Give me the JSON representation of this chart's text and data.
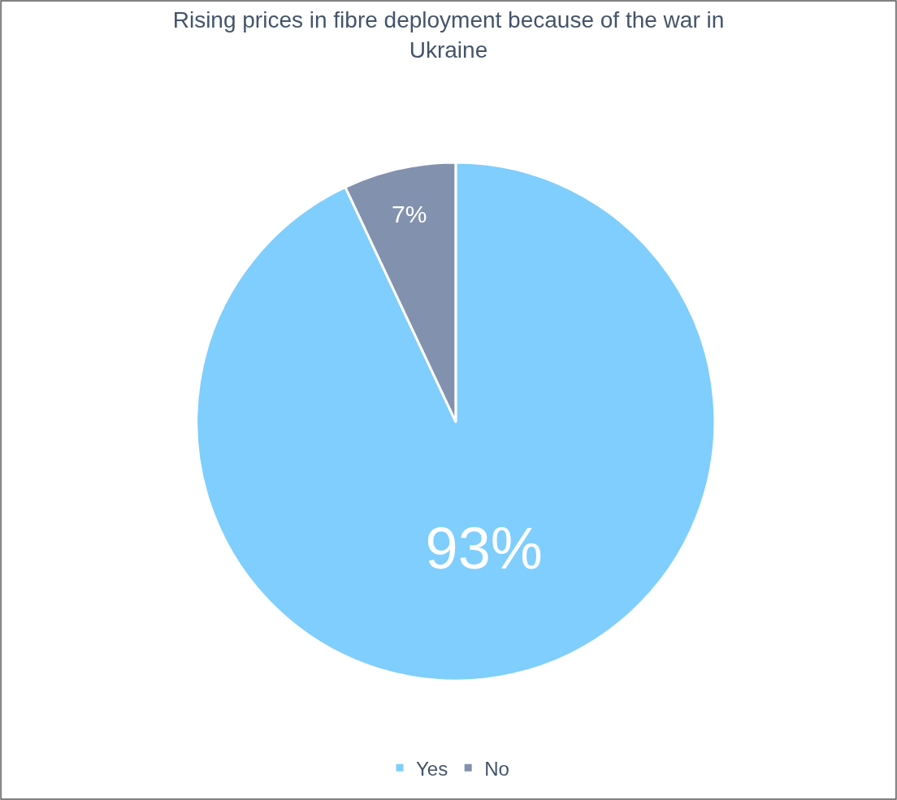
{
  "chart_data": {
    "type": "pie",
    "title": "Rising prices in fibre deployment because of the war in Ukraine",
    "categories": [
      "Yes",
      "No"
    ],
    "values": [
      93,
      7
    ],
    "colors": [
      "#7fcefd",
      "#8291ae"
    ],
    "value_labels": [
      "93%",
      "7%"
    ],
    "legend": "bottom"
  }
}
